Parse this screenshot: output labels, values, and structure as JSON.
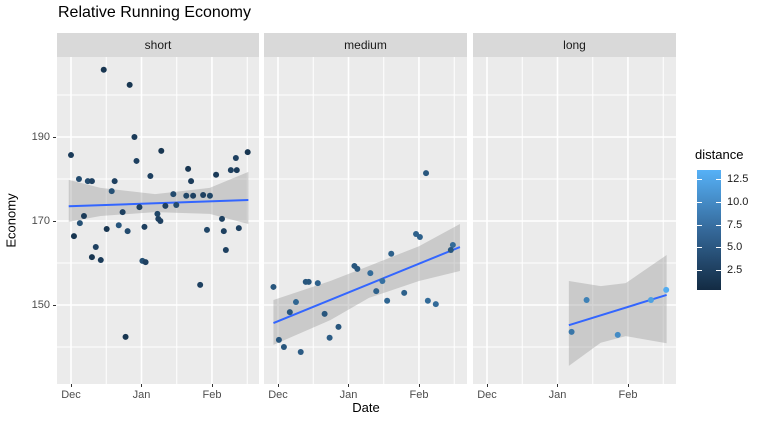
{
  "title": "Relative Running Economy",
  "axes": {
    "x_label": "Date",
    "y_label": "Economy",
    "x_tick_labels": [
      "Dec",
      "Jan",
      "Feb"
    ],
    "y_tick_labels": [
      "190",
      "170",
      "150"
    ]
  },
  "legend": {
    "title": "distance",
    "labels": [
      "12.5",
      "10.0",
      "7.5",
      "5.0",
      "2.5"
    ]
  },
  "colors": {
    "panel_bg": "#EBEBEB",
    "strip_bg": "#D9D9D9",
    "grid": "#FFFFFF",
    "smooth_line": "#3366FF",
    "ci_band": "#999999",
    "scale_low": "#132B43",
    "scale_mid": "#35699A",
    "scale_high": "#56B1F7",
    "axis_text": "#4D4D4D"
  },
  "chart_data": {
    "type": "scatter",
    "title": "Relative Running Economy",
    "xlabel": "Date",
    "ylabel": "Economy",
    "x_note": "x = days since Dec 1; ticks at Dec=0, Jan=31, Feb=62",
    "x_major_days": [
      0,
      31,
      62
    ],
    "x_minor_days": [
      15.5,
      46.5,
      77.5
    ],
    "y_major": [
      190,
      170,
      150
    ],
    "y_minor": [
      200,
      180,
      160,
      140
    ],
    "ylim": [
      131,
      209.5
    ],
    "color_scale": {
      "title": "distance",
      "low": "#132B43",
      "high": "#56B1F7",
      "ticks": [
        12.5,
        10.0,
        7.5,
        5.0,
        2.5
      ],
      "domain": [
        1,
        13.5
      ]
    },
    "facets": [
      {
        "name": "short",
        "points": [
          [
            14.4,
            206,
            2
          ],
          [
            25.8,
            202.4,
            2
          ],
          [
            27.9,
            190,
            2.5
          ],
          [
            0,
            185.7,
            2.5
          ],
          [
            39.7,
            186.7,
            2
          ],
          [
            28.8,
            184.3,
            3
          ],
          [
            77.7,
            186.4,
            2
          ],
          [
            72.5,
            185,
            3
          ],
          [
            70.3,
            182.1,
            3
          ],
          [
            72.9,
            182.1,
            2.5
          ],
          [
            51.5,
            182.4,
            2
          ],
          [
            34.9,
            180.7,
            3
          ],
          [
            63.8,
            181,
            2.5
          ],
          [
            3.5,
            180,
            4
          ],
          [
            7.4,
            179.5,
            4
          ],
          [
            9.2,
            179.5,
            3
          ],
          [
            19.2,
            179.5,
            3
          ],
          [
            52.8,
            179.5,
            2.5
          ],
          [
            17.9,
            177.1,
            4.5
          ],
          [
            45,
            176.4,
            4
          ],
          [
            50.7,
            176,
            3.5
          ],
          [
            53.7,
            176,
            3
          ],
          [
            58.1,
            176.2,
            3
          ],
          [
            61.1,
            176,
            3.5
          ],
          [
            41.5,
            173.6,
            3
          ],
          [
            46.3,
            173.8,
            4
          ],
          [
            30.1,
            173.3,
            3
          ],
          [
            22.7,
            172.1,
            3
          ],
          [
            5.7,
            171.2,
            2.5
          ],
          [
            66.4,
            170.5,
            3
          ],
          [
            3.9,
            169.5,
            4.5
          ],
          [
            1.3,
            166.4,
            2
          ],
          [
            10.9,
            163.8,
            3
          ],
          [
            9.2,
            161.4,
            2
          ],
          [
            13.1,
            160.7,
            2.5
          ],
          [
            15.7,
            168.1,
            2
          ],
          [
            21,
            169,
            5
          ],
          [
            24.9,
            167.6,
            4
          ],
          [
            32.3,
            168.6,
            3
          ],
          [
            31.4,
            160.5,
            4.5
          ],
          [
            32.8,
            160.2,
            3
          ],
          [
            38,
            171.7,
            3.5
          ],
          [
            38.4,
            170.5,
            3
          ],
          [
            39.3,
            170,
            3
          ],
          [
            56.8,
            154.8,
            3
          ],
          [
            59.8,
            167.9,
            3.5
          ],
          [
            67.2,
            167.6,
            3
          ],
          [
            68.1,
            163.1,
            3
          ],
          [
            73.8,
            168.3,
            3
          ],
          [
            24,
            142.4,
            2
          ]
        ],
        "trend": [
          [
            -1,
            173.5
          ],
          [
            78,
            175
          ]
        ],
        "ci": [
          [
            -1,
            179.8,
            169.8
          ],
          [
            13,
            177.9,
            171.2
          ],
          [
            37,
            176.4,
            172.1
          ],
          [
            61,
            177.9,
            171.7
          ],
          [
            78,
            181.7,
            169.3
          ]
        ]
      },
      {
        "name": "medium",
        "points": [
          [
            65.1,
            181.4,
            5
          ],
          [
            60.7,
            166.9,
            6
          ],
          [
            62.4,
            166.2,
            6
          ],
          [
            76.9,
            164.3,
            7
          ],
          [
            76,
            163.1,
            5
          ],
          [
            49.8,
            162.2,
            6
          ],
          [
            33.6,
            159.3,
            5
          ],
          [
            34.9,
            158.6,
            5
          ],
          [
            40.6,
            157.6,
            7
          ],
          [
            12.2,
            155.5,
            5
          ],
          [
            13.5,
            155.5,
            5
          ],
          [
            17.5,
            155.2,
            6
          ],
          [
            -2,
            154.3,
            5
          ],
          [
            45.9,
            155.7,
            7.5
          ],
          [
            43.2,
            153.3,
            6
          ],
          [
            7.9,
            150.7,
            6.5
          ],
          [
            5.2,
            148.3,
            5
          ],
          [
            20.5,
            147.9,
            5
          ],
          [
            48,
            151,
            6.5
          ],
          [
            55.5,
            152.9,
            6
          ],
          [
            65.9,
            151,
            7
          ],
          [
            69.4,
            150.2,
            7
          ],
          [
            26.6,
            144.8,
            5
          ],
          [
            22.7,
            142.2,
            5.5
          ],
          [
            0.4,
            141.7,
            5
          ],
          [
            2.6,
            140,
            5
          ],
          [
            10,
            138.8,
            5.5
          ]
        ],
        "trend": [
          [
            -2,
            145.7
          ],
          [
            80,
            163.8
          ]
        ],
        "ci": [
          [
            -2,
            151.2,
            140.5
          ],
          [
            23,
            155.7,
            146.4
          ],
          [
            40,
            159.3,
            151.7
          ],
          [
            62,
            164.0,
            155.7
          ],
          [
            80,
            169.3,
            158.1
          ]
        ]
      },
      {
        "name": "long",
        "points": [
          [
            37.2,
            143.6,
            8
          ],
          [
            43.8,
            151.2,
            9
          ],
          [
            57.5,
            142.9,
            10
          ],
          [
            72.1,
            151.2,
            12
          ],
          [
            78.8,
            153.6,
            13
          ]
        ],
        "trend": [
          [
            36,
            145.2
          ],
          [
            79,
            152.4
          ]
        ],
        "ci": [
          [
            36,
            155.7,
            135.5
          ],
          [
            50,
            154.5,
            141
          ],
          [
            61,
            155.2,
            142.6
          ],
          [
            79,
            161.9,
            140.9
          ]
        ]
      }
    ]
  }
}
